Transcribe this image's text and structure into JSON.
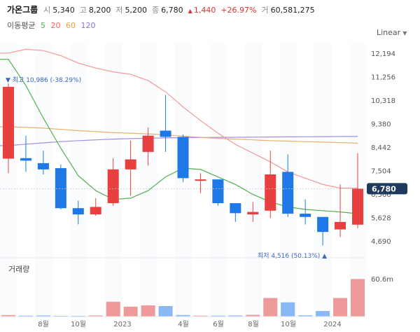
{
  "header": {
    "name": "가온그룹",
    "open_label": "시",
    "open": "5,340",
    "high_label": "고",
    "high": "8,200",
    "low_label": "저",
    "low": "5,200",
    "close_label": "종",
    "close": "6,780",
    "change": "1,440",
    "change_pct": "+26.97%",
    "volume_label": "거",
    "volume": "60,581,275"
  },
  "ma_legend": {
    "title": "이동평균",
    "periods": [
      {
        "label": "5",
        "color": "#51b14c"
      },
      {
        "label": "20",
        "color": "#ff5e5e"
      },
      {
        "label": "60",
        "color": "#e8a33d"
      },
      {
        "label": "120",
        "color": "#8e72de"
      }
    ]
  },
  "scale_toggle": {
    "label": "Linear"
  },
  "volume_title": "거래량",
  "colors": {
    "up": "#e8403f",
    "down": "#1f78e8",
    "up_vol": "#ef9a9a",
    "down_vol": "#8ab8f5",
    "ma5": "#51b14c",
    "ma20": "#f19999",
    "ma60": "#e8b06a",
    "ma120": "#a58be8",
    "price_badge": "#1f3a5f"
  },
  "chart_data": [
    {
      "type": "candlestick",
      "title": "",
      "y_ticks": [
        "12,194",
        "11,256",
        "10,318",
        "9,380",
        "8,442",
        "7,504",
        "6,566",
        "5,628",
        "4,690"
      ],
      "ylim": [
        4300,
        12700
      ],
      "x_ticks": [
        "8월",
        "10월",
        "2023",
        "4월",
        "6월",
        "8월",
        "10월",
        "2024"
      ],
      "current_price": "6,780",
      "max_label": {
        "text": "최고 10,986 (-38.29%)",
        "value": 10986
      },
      "min_label": {
        "text": "최저 4,516 (50.13%)",
        "value": 4516
      },
      "candles": [
        {
          "o": 7980,
          "c": 10850,
          "h": 10986,
          "l": 7400
        },
        {
          "o": 8000,
          "c": 7900,
          "h": 8900,
          "l": 7450
        },
        {
          "o": 7800,
          "c": 7550,
          "h": 8300,
          "l": 7350
        },
        {
          "o": 7600,
          "c": 6000,
          "h": 7750,
          "l": 5950
        },
        {
          "o": 6000,
          "c": 5750,
          "h": 6300,
          "l": 5350
        },
        {
          "o": 5750,
          "c": 6050,
          "h": 6400,
          "l": 5700
        },
        {
          "o": 6200,
          "c": 7550,
          "h": 8000,
          "l": 6100
        },
        {
          "o": 7550,
          "c": 7950,
          "h": 8700,
          "l": 6500
        },
        {
          "o": 8250,
          "c": 8900,
          "h": 9220,
          "l": 7700
        },
        {
          "o": 9100,
          "c": 8850,
          "h": 10530,
          "l": 8250
        },
        {
          "o": 8850,
          "c": 7200,
          "h": 8950,
          "l": 7050
        },
        {
          "o": 7150,
          "c": 7150,
          "h": 7400,
          "l": 6600
        },
        {
          "o": 7150,
          "c": 6200,
          "h": 7150,
          "l": 6100
        },
        {
          "o": 6200,
          "c": 5800,
          "h": 6200,
          "l": 5450
        },
        {
          "o": 5750,
          "c": 5850,
          "h": 6250,
          "l": 5450
        },
        {
          "o": 5900,
          "c": 7350,
          "h": 8300,
          "l": 5600
        },
        {
          "o": 7450,
          "c": 5780,
          "h": 8150,
          "l": 5650
        },
        {
          "o": 5780,
          "c": 5650,
          "h": 6350,
          "l": 5350
        },
        {
          "o": 5650,
          "c": 5050,
          "h": 5650,
          "l": 4516
        },
        {
          "o": 5150,
          "c": 5450,
          "h": 6950,
          "l": 4850
        },
        {
          "o": 5340,
          "c": 6780,
          "h": 8200,
          "l": 5200
        }
      ],
      "ma5": [
        11950,
        10900,
        9600,
        8400,
        7300,
        6700,
        6350,
        6400,
        6700,
        7250,
        7600,
        7550,
        7250,
        6950,
        6550,
        6250,
        6050,
        5950,
        5900,
        5850,
        5780
      ],
      "ma20": [
        12200,
        12350,
        12300,
        12100,
        11800,
        11600,
        11450,
        11350,
        11100,
        10650,
        10050,
        9500,
        9000,
        8550,
        8200,
        7850,
        7450,
        7200,
        6950,
        6800,
        6800
      ],
      "ma60": [
        9250,
        9230,
        9200,
        9150,
        9100,
        9060,
        9020,
        9000,
        8970,
        8930,
        8880,
        8830,
        8790,
        8760,
        8730,
        8700,
        8680,
        8660,
        8640,
        8620,
        8600
      ],
      "ma120": [
        8500,
        8560,
        8610,
        8660,
        8700,
        8730,
        8760,
        8780,
        8795,
        8810,
        8820,
        8825,
        8830,
        8835,
        8840,
        8845,
        8850,
        8855,
        8860,
        8865,
        8870
      ]
    },
    {
      "type": "bar",
      "title": "거래량",
      "y_tick": "60.6m",
      "ylim": [
        0,
        61000000
      ],
      "values": [
        2500000,
        1500000,
        1800000,
        1200000,
        1200000,
        1800000,
        24000000,
        16000000,
        18000000,
        17000000,
        2500000,
        1500000,
        1500000,
        1800000,
        2800000,
        30000000,
        23000000,
        2000000,
        9000000,
        30000000,
        60581275
      ]
    }
  ]
}
